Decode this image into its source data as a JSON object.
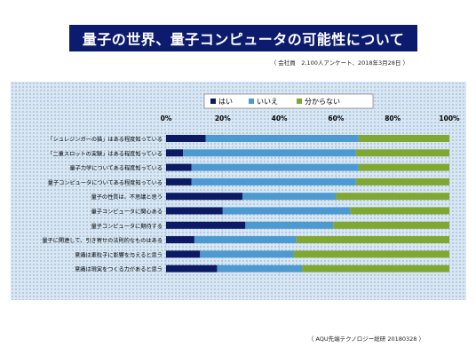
{
  "title": "量子の世界、量子コンピュータの可能性について",
  "subtitle": "（ 会社員　2,100人アンケート、2018年3月28日 ）",
  "footer": "（ AQU先端テクノロジー総研 20180328 ）",
  "colors": {
    "banner": "#0d1b6e",
    "panel": "#d9e7f3"
  },
  "chart_data": {
    "type": "bar",
    "orientation": "horizontal",
    "stacked": "percent",
    "categories": [
      "「シュレジンガーの猫」はある程度知っている",
      "「二重スロットの実験」はある程度知っている",
      "量子力学についてある程度知っている",
      "量子コンピュータについてある程度知っている",
      "量子の性質は、不思議と思う",
      "量子コンピュータに関心ある",
      "量子コンピュータに期待する",
      "量子に関連して、引き寄せの法則的なものはある",
      "意識は素粒子に影響を与えると思う",
      "意識は現実をつくる力があると思う"
    ],
    "series": [
      {
        "name": "はい",
        "color": "#0c1a66",
        "values": [
          14,
          6,
          9,
          9,
          27,
          20,
          28,
          10,
          12,
          18
        ]
      },
      {
        "name": "いいえ",
        "color": "#4d9ad2",
        "values": [
          54,
          61,
          59,
          58,
          33,
          45,
          31,
          36,
          33,
          30
        ]
      },
      {
        "name": "分からない",
        "color": "#7ea832",
        "values": [
          32,
          33,
          32,
          33,
          40,
          35,
          41,
          54,
          55,
          52
        ]
      }
    ],
    "xticks": [
      "0%",
      "20%",
      "40%",
      "60%",
      "80%",
      "100%"
    ],
    "xlim": [
      0,
      100
    ],
    "legend_position": "top",
    "grid": true
  }
}
